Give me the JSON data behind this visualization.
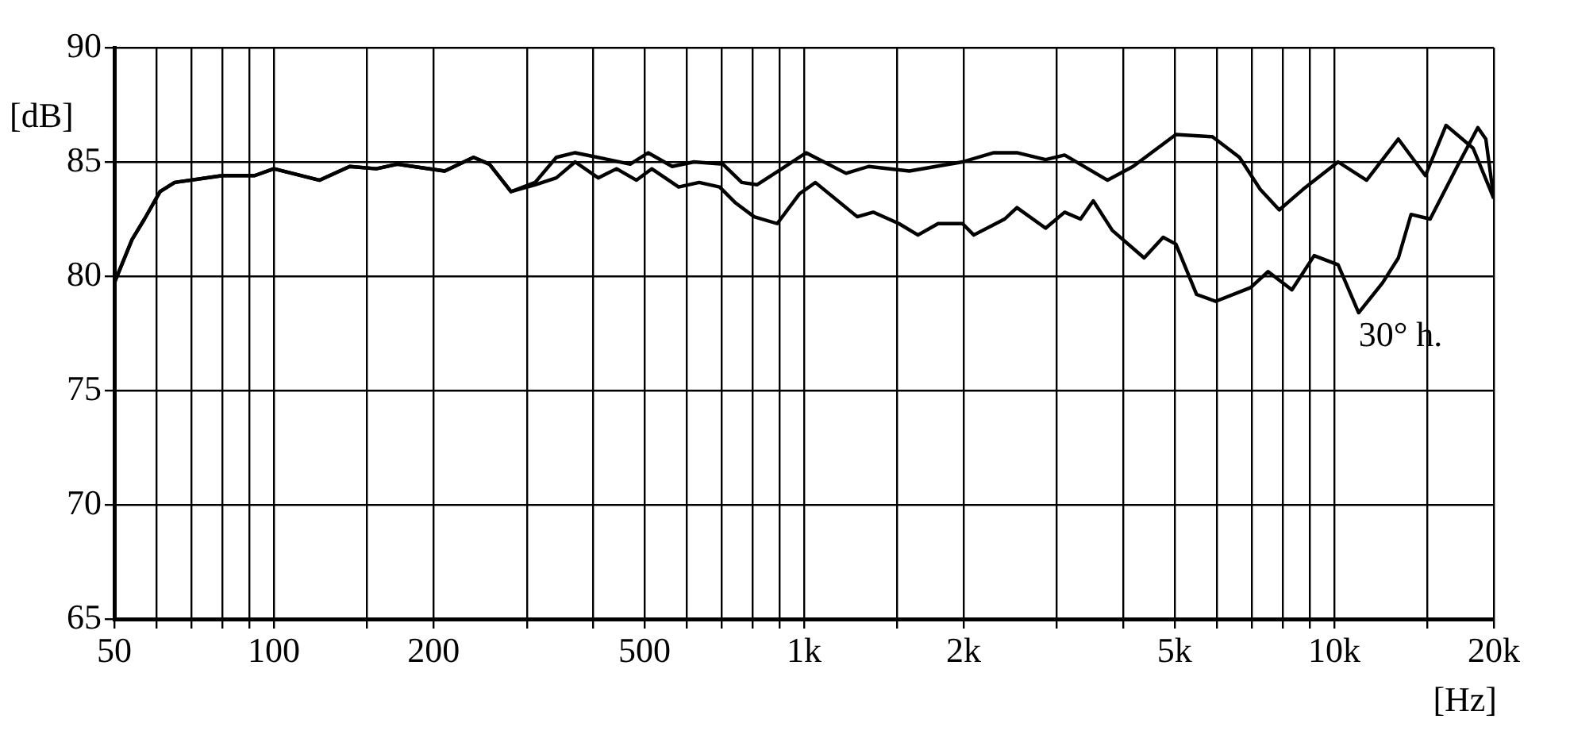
{
  "chart_data": {
    "type": "line",
    "xlabel": "[Hz]",
    "ylabel": "[dB]",
    "log": "x",
    "xlim": [
      50,
      20000
    ],
    "ylim": [
      65,
      90
    ],
    "xticks": [
      50,
      {
        "value": 60,
        "label": null
      },
      {
        "value": 70,
        "label": null
      },
      {
        "value": 80,
        "label": null
      },
      {
        "value": 90,
        "label": null
      },
      100,
      {
        "value": 150,
        "label": null
      },
      200,
      {
        "value": 300,
        "label": null
      },
      {
        "value": 400,
        "label": null
      },
      500,
      {
        "value": 600,
        "label": null
      },
      {
        "value": 700,
        "label": null
      },
      {
        "value": 800,
        "label": null
      },
      {
        "value": 900,
        "label": null
      },
      {
        "value": 1000,
        "label": "1k"
      },
      {
        "value": 1500,
        "label": null
      },
      {
        "value": 2000,
        "label": "2k"
      },
      {
        "value": 3000,
        "label": null
      },
      {
        "value": 4000,
        "label": null
      },
      {
        "value": 5000,
        "label": "5k"
      },
      {
        "value": 6000,
        "label": null
      },
      {
        "value": 7000,
        "label": null
      },
      {
        "value": 8000,
        "label": null
      },
      {
        "value": 9000,
        "label": null
      },
      {
        "value": 10000,
        "label": "10k"
      },
      {
        "value": 15000,
        "label": null
      },
      {
        "value": 20000,
        "label": "20k"
      }
    ],
    "yticks": [
      65,
      70,
      75,
      80,
      85,
      90
    ],
    "grid": true,
    "legend": false,
    "marker": "none",
    "line_style": "solid",
    "series": [
      {
        "color": "#000000",
        "x": [
          50,
          54,
          57,
          61,
          65,
          80,
          92,
          100,
          122,
          139,
          156,
          171,
          210,
          238,
          255,
          280,
          311,
          341,
          370,
          428,
          470,
          508,
          564,
          620,
          703,
          763,
          815,
          908,
          1009,
          1200,
          1324,
          1580,
          1990,
          2280,
          2521,
          2855,
          3101,
          3737,
          4174,
          5028,
          5892,
          6627,
          7250,
          7877,
          8734,
          10170,
          11510,
          13215,
          14860,
          16255,
          18280,
          20000
        ],
        "values": [
          79.7,
          81.6,
          82.5,
          83.7,
          84.1,
          84.4,
          84.4,
          84.7,
          84.2,
          84.8,
          84.7,
          84.9,
          84.6,
          85.2,
          84.9,
          83.7,
          84.1,
          85.2,
          85.4,
          85.1,
          84.9,
          85.4,
          84.8,
          85.0,
          84.9,
          84.1,
          84.0,
          84.7,
          85.4,
          84.5,
          84.8,
          84.6,
          85.0,
          85.4,
          85.4,
          85.1,
          85.3,
          84.2,
          84.8,
          86.2,
          86.1,
          85.2,
          83.8,
          82.9,
          83.8,
          85.0,
          84.2,
          86.0,
          84.4,
          86.6,
          85.6,
          83.4
        ]
      },
      {
        "name": "30° h.",
        "color": "#000000",
        "x": [
          50,
          54,
          57,
          61,
          65,
          80,
          92,
          100,
          122,
          139,
          156,
          171,
          210,
          238,
          255,
          280,
          311,
          341,
          370,
          409,
          443,
          483,
          516,
          580,
          634,
          693,
          743,
          805,
          890,
          980,
          1050,
          1260,
          1350,
          1510,
          1640,
          1790,
          1990,
          2090,
          2390,
          2521,
          2855,
          3101,
          3323,
          3512,
          3815,
          4380,
          4757,
          5028,
          5501,
          5974,
          6956,
          7505,
          8322,
          9166,
          10170,
          11120,
          12330,
          13215,
          13960,
          15170,
          17060,
          18660,
          19320,
          20000
        ],
        "values": [
          79.7,
          81.6,
          82.5,
          83.7,
          84.1,
          84.4,
          84.4,
          84.7,
          84.2,
          84.8,
          84.7,
          84.9,
          84.6,
          85.2,
          84.9,
          83.7,
          84.0,
          84.3,
          85.0,
          84.3,
          84.7,
          84.2,
          84.7,
          83.9,
          84.1,
          83.9,
          83.2,
          82.6,
          82.3,
          83.6,
          84.1,
          82.6,
          82.8,
          82.3,
          81.8,
          82.3,
          82.3,
          81.8,
          82.5,
          83.0,
          82.1,
          82.8,
          82.5,
          83.3,
          82.0,
          80.8,
          81.7,
          81.4,
          79.2,
          78.9,
          79.5,
          80.2,
          79.4,
          80.9,
          80.5,
          78.4,
          79.7,
          80.8,
          82.7,
          82.5,
          84.8,
          86.5,
          86.0,
          83.4
        ]
      }
    ]
  }
}
